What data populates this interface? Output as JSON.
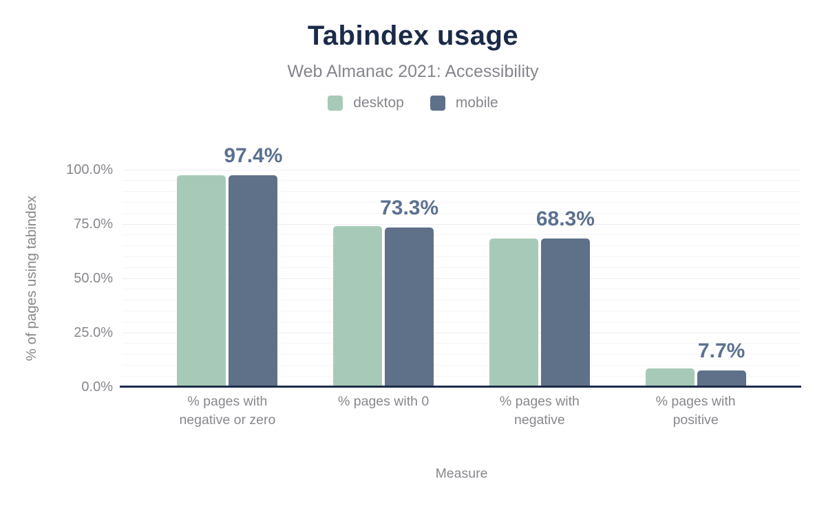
{
  "chart_data": {
    "type": "bar",
    "title": "Tabindex usage",
    "subtitle": "Web Almanac 2021: Accessibility",
    "xlabel": "Measure",
    "ylabel": "% of pages using tabindex",
    "categories": [
      "% pages with negative or zero",
      "% pages with 0",
      "% pages with negative",
      "% pages with positive"
    ],
    "series": [
      {
        "name": "desktop",
        "color": "#a6cab7",
        "values": [
          97.5,
          74.1,
          68.4,
          8.5
        ]
      },
      {
        "name": "mobile",
        "color": "#5f7089",
        "values": [
          97.4,
          73.3,
          68.3,
          7.7
        ]
      }
    ],
    "data_labels": [
      "97.4%",
      "73.3%",
      "68.3%",
      "7.7%"
    ],
    "labeled_series": "mobile",
    "y_ticks": [
      {
        "label": "100.0%",
        "value": 100
      },
      {
        "label": "75.0%",
        "value": 75
      },
      {
        "label": "50.0%",
        "value": 50
      },
      {
        "label": "25.0%",
        "value": 25
      },
      {
        "label": "0.0%",
        "value": 0
      }
    ],
    "ylim": [
      0,
      100
    ],
    "minor_grid_step_percent": 5,
    "major_grid_step_percent": 25,
    "grid": true,
    "legend_position": "top"
  },
  "colors": {
    "title": "#1b2a48",
    "subtitle": "#85868c",
    "axis_text": "#87878d",
    "data_label": "#5c7090",
    "baseline": "#1b2b4a",
    "grid_major": "#ededf2",
    "grid_minor": "#f5f5f8",
    "desktop_bar": "#a6cab7",
    "mobile_bar": "#5f7089",
    "background": "#ffffff"
  }
}
